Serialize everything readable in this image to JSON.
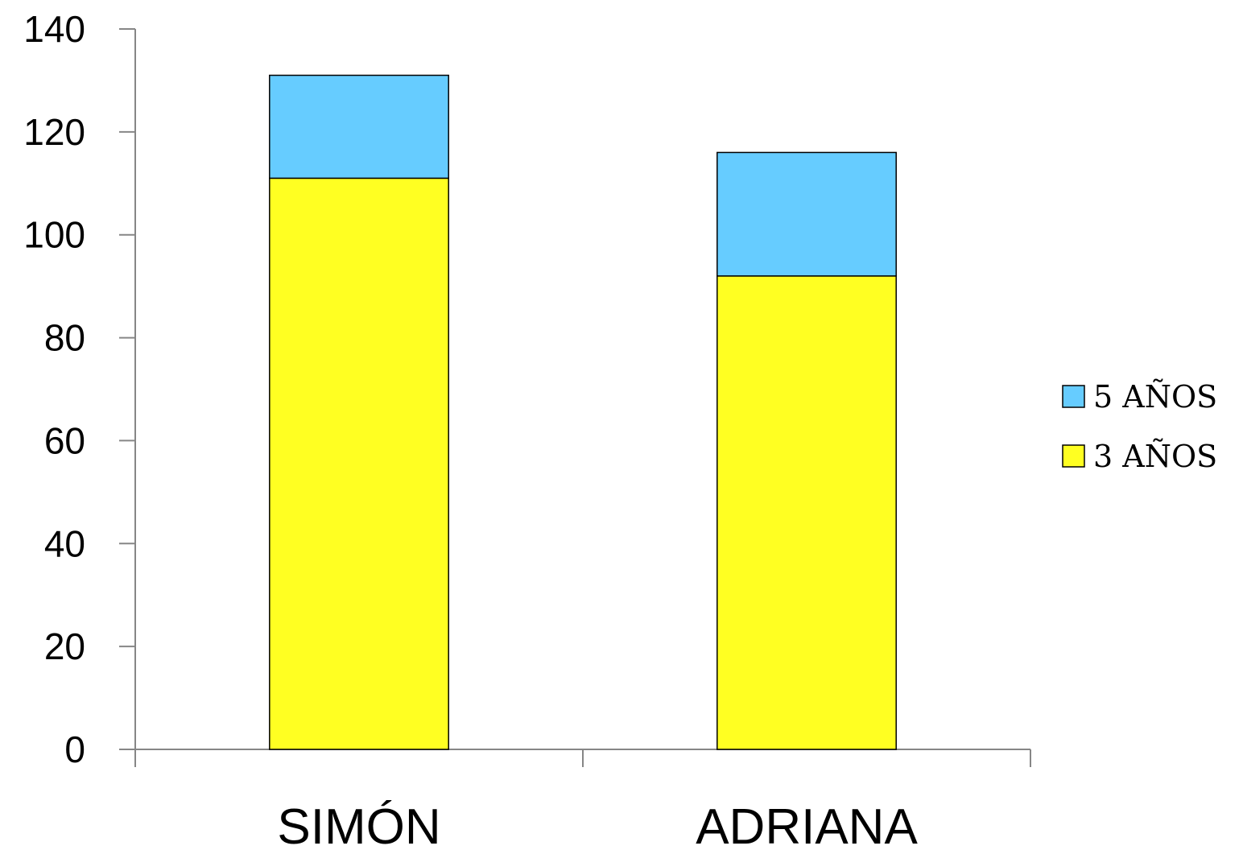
{
  "chart_data": {
    "type": "bar",
    "stacked": true,
    "categories": [
      "SIMÓN",
      "ADRIANA"
    ],
    "series": [
      {
        "name": "3 AÑOS",
        "values": [
          111,
          92
        ],
        "color": "#FFFF22"
      },
      {
        "name": "5 AÑOS",
        "values": [
          20,
          24
        ],
        "color": "#66CCFF"
      }
    ],
    "legend_order": [
      "5 AÑOS",
      "3 AÑOS"
    ],
    "ylim": [
      0,
      140
    ],
    "yticks": [
      0,
      20,
      40,
      60,
      80,
      100,
      120,
      140
    ],
    "title": "",
    "xlabel": "",
    "ylabel": "",
    "grid": false,
    "legend_position": "right"
  }
}
